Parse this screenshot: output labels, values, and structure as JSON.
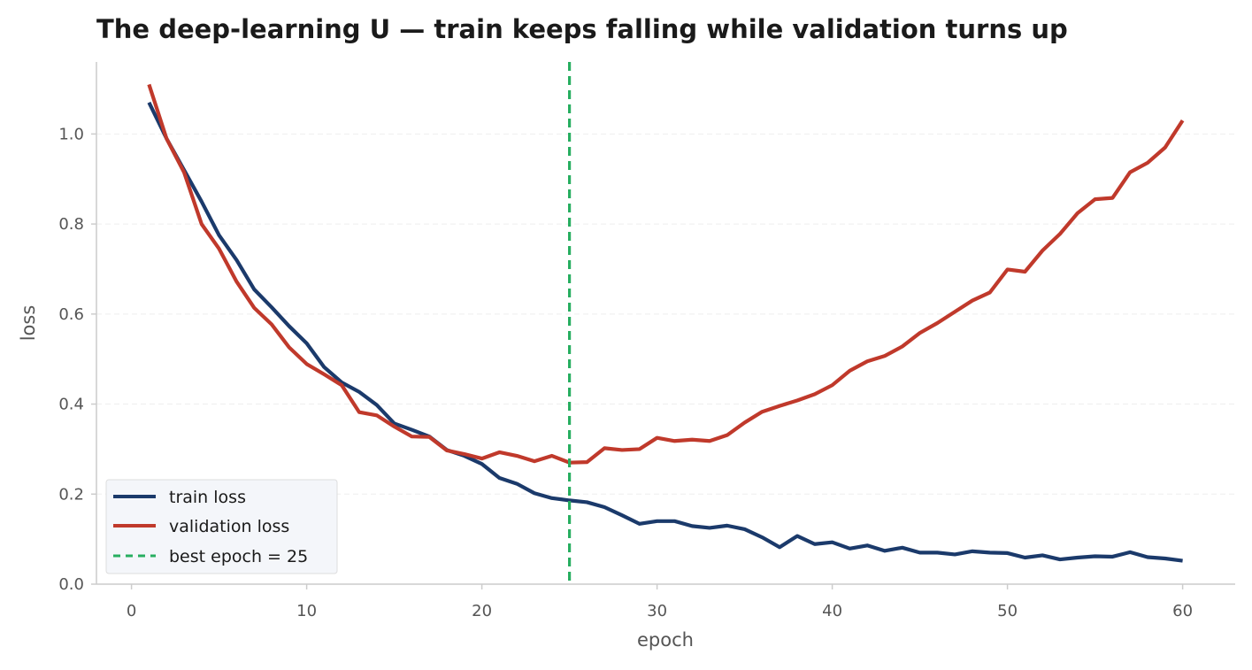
{
  "chart_data": {
    "type": "line",
    "title": "The deep-learning U — train keeps falling while validation turns up",
    "xlabel": "epoch",
    "ylabel": "loss",
    "xlim": [
      -2,
      63
    ],
    "ylim": [
      0,
      1.16
    ],
    "xticks": [
      0,
      10,
      20,
      30,
      40,
      50,
      60
    ],
    "yticks": [
      0.0,
      0.2,
      0.4,
      0.6,
      0.8,
      1.0
    ],
    "xtick_labels": [
      "0",
      "10",
      "20",
      "30",
      "40",
      "50",
      "60"
    ],
    "ytick_labels": [
      "0.0",
      "0.2",
      "0.4",
      "0.6",
      "0.8",
      "1.0"
    ],
    "grid": "horizontal",
    "legend_position": "lower-left",
    "x": [
      1,
      2,
      3,
      4,
      5,
      6,
      7,
      8,
      9,
      10,
      11,
      12,
      13,
      14,
      15,
      16,
      17,
      18,
      19,
      20,
      21,
      22,
      23,
      24,
      25,
      26,
      27,
      28,
      29,
      30,
      31,
      32,
      33,
      34,
      35,
      36,
      37,
      38,
      39,
      40,
      41,
      42,
      43,
      44,
      45,
      46,
      47,
      48,
      49,
      50,
      51,
      52,
      53,
      54,
      55,
      56,
      57,
      58,
      59,
      60
    ],
    "series": [
      {
        "name": "train loss",
        "color": "#1b3a6b",
        "values": [
          1.07,
          0.99,
          0.92,
          0.85,
          0.775,
          0.72,
          0.655,
          0.615,
          0.573,
          0.535,
          0.482,
          0.448,
          0.427,
          0.398,
          0.357,
          0.343,
          0.328,
          0.298,
          0.285,
          0.267,
          0.236,
          0.223,
          0.202,
          0.191,
          0.186,
          0.182,
          0.171,
          0.153,
          0.134,
          0.14,
          0.14,
          0.129,
          0.125,
          0.13,
          0.122,
          0.104,
          0.082,
          0.107,
          0.089,
          0.093,
          0.079,
          0.086,
          0.074,
          0.081,
          0.07,
          0.07,
          0.066,
          0.073,
          0.07,
          0.069,
          0.059,
          0.064,
          0.055,
          0.059,
          0.062,
          0.061,
          0.071,
          0.06,
          0.057,
          0.052
        ]
      },
      {
        "name": "validation loss",
        "color": "#c0392b",
        "values": [
          1.11,
          0.99,
          0.915,
          0.8,
          0.745,
          0.672,
          0.614,
          0.577,
          0.526,
          0.489,
          0.466,
          0.442,
          0.382,
          0.375,
          0.35,
          0.328,
          0.327,
          0.297,
          0.289,
          0.279,
          0.293,
          0.285,
          0.273,
          0.285,
          0.27,
          0.271,
          0.302,
          0.298,
          0.3,
          0.325,
          0.318,
          0.321,
          0.318,
          0.331,
          0.359,
          0.383,
          0.396,
          0.408,
          0.422,
          0.442,
          0.474,
          0.495,
          0.507,
          0.528,
          0.558,
          0.58,
          0.605,
          0.63,
          0.648,
          0.699,
          0.694,
          0.741,
          0.778,
          0.824,
          0.855,
          0.858,
          0.915,
          0.936,
          0.97,
          1.03
        ]
      }
    ],
    "reference_line": {
      "label": "best epoch = 25",
      "x": 25,
      "color": "#27ae60",
      "style": "dashed"
    }
  }
}
